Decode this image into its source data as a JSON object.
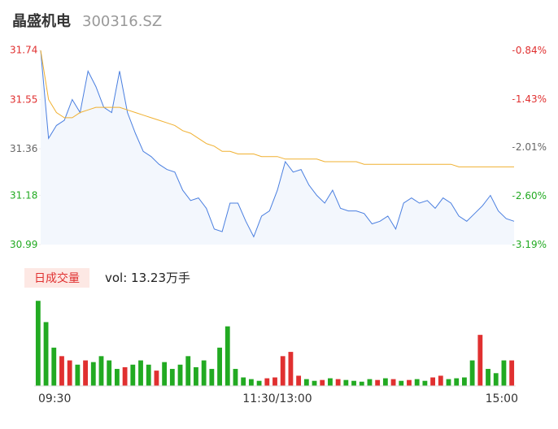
{
  "header": {
    "name": "晶盛机电",
    "code": "300316.SZ"
  },
  "chart_data": [
    {
      "type": "line",
      "categories": [
        "09:30",
        null,
        null,
        null,
        null,
        null,
        null,
        null,
        null,
        null,
        null,
        null,
        null,
        null,
        null,
        null,
        null,
        null,
        null,
        null,
        null,
        null,
        null,
        null,
        null,
        null,
        null,
        null,
        null,
        null,
        "11:30/13:00",
        null,
        null,
        null,
        null,
        null,
        null,
        null,
        null,
        null,
        null,
        null,
        null,
        null,
        null,
        null,
        null,
        null,
        null,
        null,
        null,
        null,
        null,
        null,
        null,
        null,
        null,
        null,
        null,
        null,
        "15:00"
      ],
      "series": [
        {
          "name": "price",
          "color": "#4a7fe0",
          "values": [
            31.74,
            31.4,
            31.45,
            31.47,
            31.55,
            31.5,
            31.66,
            31.6,
            31.52,
            31.5,
            31.66,
            31.5,
            31.42,
            31.35,
            31.33,
            31.3,
            31.28,
            31.27,
            31.2,
            31.16,
            31.17,
            31.13,
            31.05,
            31.04,
            31.15,
            31.15,
            31.08,
            31.02,
            31.1,
            31.12,
            31.2,
            31.31,
            31.27,
            31.28,
            31.22,
            31.18,
            31.15,
            31.2,
            31.13,
            31.12,
            31.12,
            31.11,
            31.07,
            31.08,
            31.1,
            31.05,
            31.15,
            31.17,
            31.15,
            31.16,
            31.13,
            31.17,
            31.15,
            31.1,
            31.08,
            31.11,
            31.14,
            31.18,
            31.12,
            31.09,
            31.08
          ]
        },
        {
          "name": "average",
          "color": "#f0b030",
          "values": [
            31.74,
            31.55,
            31.5,
            31.48,
            31.48,
            31.5,
            31.51,
            31.52,
            31.52,
            31.52,
            31.52,
            31.51,
            31.5,
            31.49,
            31.48,
            31.47,
            31.46,
            31.45,
            31.43,
            31.42,
            31.4,
            31.38,
            31.37,
            31.35,
            31.35,
            31.34,
            31.34,
            31.34,
            31.33,
            31.33,
            31.33,
            31.32,
            31.32,
            31.32,
            31.32,
            31.32,
            31.31,
            31.31,
            31.31,
            31.31,
            31.31,
            31.3,
            31.3,
            31.3,
            31.3,
            31.3,
            31.3,
            31.3,
            31.3,
            31.3,
            31.3,
            31.3,
            31.3,
            31.29,
            31.29,
            31.29,
            31.29,
            31.29,
            31.29,
            31.29,
            31.29
          ]
        }
      ],
      "ylim": [
        30.99,
        31.74
      ],
      "yticks": [
        31.74,
        31.55,
        31.36,
        31.18,
        30.99
      ],
      "y2lim": [
        -3.19,
        -0.84
      ],
      "y2ticks": [
        {
          "value": -0.84,
          "label": "-0.84%"
        },
        {
          "value": -1.43,
          "label": "-1.43%"
        },
        {
          "value": -2.01,
          "label": "-2.01%"
        },
        {
          "value": -2.6,
          "label": "-2.60%"
        },
        {
          "value": -3.19,
          "label": "-3.19%"
        }
      ]
    },
    {
      "type": "bar",
      "tab": "日成交量",
      "label": "vol: 13.23万手",
      "values": [
        100,
        75,
        45,
        35,
        30,
        25,
        30,
        28,
        35,
        30,
        20,
        22,
        25,
        30,
        25,
        18,
        28,
        20,
        25,
        35,
        22,
        30,
        20,
        45,
        70,
        20,
        10,
        8,
        6,
        9,
        10,
        35,
        40,
        12,
        8,
        6,
        7,
        9,
        8,
        7,
        6,
        5,
        8,
        7,
        9,
        8,
        6,
        7,
        8,
        6,
        10,
        12,
        8,
        9,
        10,
        30,
        60,
        20,
        15,
        30,
        30
      ],
      "colors": [
        "#22aa22",
        "#22aa22",
        "#22aa22",
        "#e03030",
        "#e03030",
        "#22aa22",
        "#e03030",
        "#22aa22",
        "#22aa22",
        "#22aa22",
        "#22aa22",
        "#e03030",
        "#22aa22",
        "#22aa22",
        "#22aa22",
        "#e03030",
        "#22aa22",
        "#22aa22",
        "#22aa22",
        "#22aa22",
        "#22aa22",
        "#22aa22",
        "#22aa22",
        "#22aa22",
        "#22aa22",
        "#22aa22",
        "#22aa22",
        "#22aa22",
        "#22aa22",
        "#e03030",
        "#e03030",
        "#e03030",
        "#e03030",
        "#e03030",
        "#22aa22",
        "#22aa22",
        "#e03030",
        "#22aa22",
        "#e03030",
        "#22aa22",
        "#22aa22",
        "#22aa22",
        "#22aa22",
        "#e03030",
        "#22aa22",
        "#e03030",
        "#22aa22",
        "#e03030",
        "#22aa22",
        "#22aa22",
        "#e03030",
        "#e03030",
        "#22aa22",
        "#22aa22",
        "#22aa22",
        "#22aa22",
        "#e03030",
        "#22aa22",
        "#22aa22",
        "#22aa22",
        "#e03030"
      ],
      "ylim": [
        0,
        105
      ]
    }
  ]
}
